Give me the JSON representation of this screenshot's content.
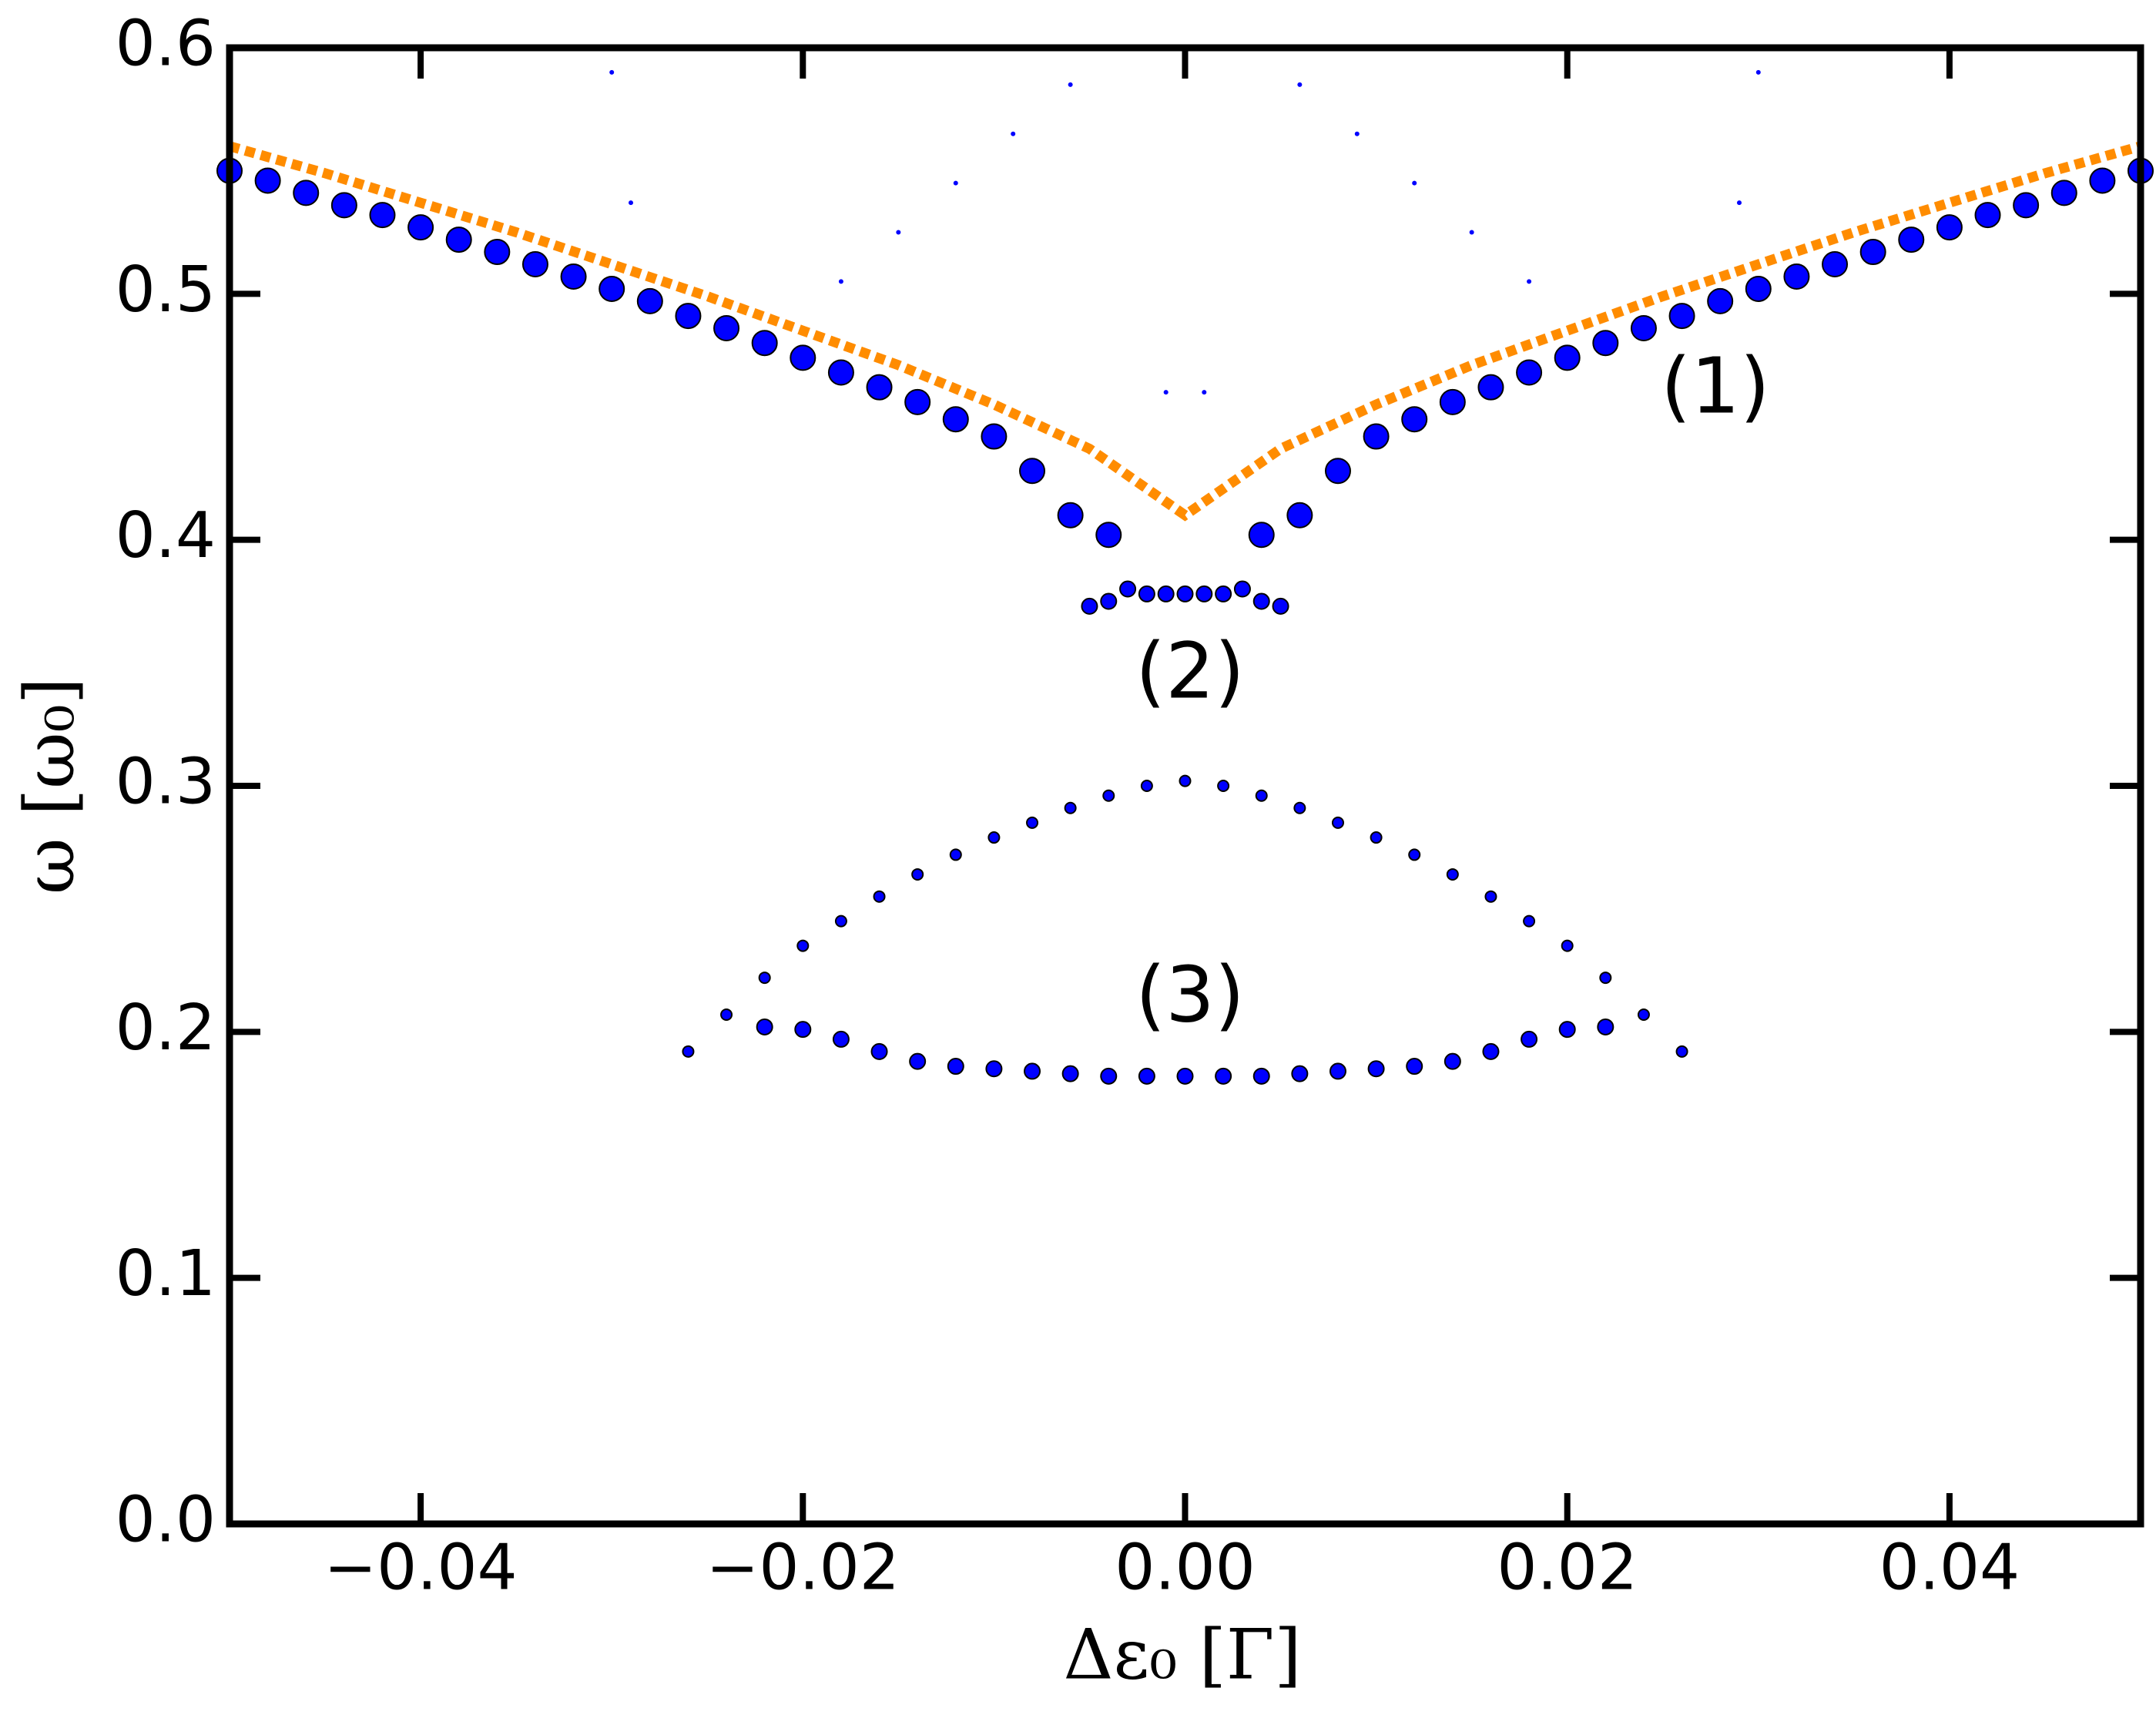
{
  "chart_data": {
    "type": "scatter",
    "x_label": "Δε₀  [Γ]",
    "y_label": "ω [ω₀]",
    "xlim": [
      -0.05,
      0.05
    ],
    "xticks": [
      {
        "value": -0.04,
        "label": "−0.04"
      },
      {
        "value": -0.02,
        "label": "−0.02"
      },
      {
        "value": 0,
        "label": "0.00"
      },
      0.02,
      0.04
    ],
    "ylim": [
      0,
      0.6
    ],
    "yticks": [
      {
        "value": 0,
        "label": "0.0"
      },
      0.1,
      0.2,
      0.3,
      0.4,
      0.5,
      0.6
    ],
    "annotations": [
      "(1)",
      "(2)",
      "(3)"
    ],
    "series": [
      {
        "style": "dotted-line",
        "color": "#ff8c00",
        "x": [
          -0.05,
          -0.045,
          -0.04,
          -0.035,
          -0.03,
          -0.025,
          -0.02,
          -0.015,
          -0.01,
          -0.005,
          0,
          0.005,
          0.01,
          0.015,
          0.02,
          0.025,
          0.03,
          0.035,
          0.04,
          0.045,
          0.05
        ],
        "y": [
          0.56,
          0.549,
          0.537,
          0.525,
          0.512,
          0.499,
          0.485,
          0.471,
          0.455,
          0.437,
          0.41,
          0.437,
          0.455,
          0.471,
          0.485,
          0.499,
          0.512,
          0.525,
          0.537,
          0.549,
          0.56
        ]
      },
      {
        "style": "marker",
        "size": 16,
        "color": "#0000ff",
        "x": [
          -0.05,
          -0.048,
          -0.046,
          -0.044,
          -0.042,
          -0.04,
          -0.038,
          -0.036,
          -0.034,
          -0.032,
          -0.03,
          -0.028,
          -0.026,
          -0.024,
          -0.022,
          -0.02,
          -0.018,
          -0.016,
          -0.014,
          -0.012,
          -0.01,
          -0.008,
          -0.006,
          -0.004,
          0.004,
          0.006,
          0.008,
          0.01,
          0.012,
          0.014,
          0.016,
          0.018,
          0.02,
          0.022,
          0.024,
          0.026,
          0.028,
          0.03,
          0.032,
          0.034,
          0.036,
          0.038,
          0.04,
          0.042,
          0.044,
          0.046,
          0.048,
          0.05
        ],
        "y": [
          0.55,
          0.546,
          0.541,
          0.536,
          0.532,
          0.527,
          0.522,
          0.517,
          0.512,
          0.507,
          0.502,
          0.497,
          0.491,
          0.486,
          0.48,
          0.474,
          0.468,
          0.462,
          0.456,
          0.449,
          0.442,
          0.428,
          0.41,
          0.402,
          0.402,
          0.41,
          0.428,
          0.442,
          0.449,
          0.456,
          0.462,
          0.468,
          0.474,
          0.48,
          0.486,
          0.491,
          0.497,
          0.502,
          0.507,
          0.512,
          0.517,
          0.522,
          0.527,
          0.532,
          0.536,
          0.541,
          0.546,
          0.55
        ]
      },
      {
        "style": "marker",
        "size": 10,
        "color": "#0000ff",
        "x": [
          -0.005,
          -0.004,
          -0.003,
          -0.002,
          -0.001,
          0,
          0.001,
          0.002,
          0.003,
          0.004,
          0.005
        ],
        "y": [
          0.373,
          0.375,
          0.38,
          0.378,
          0.378,
          0.378,
          0.378,
          0.378,
          0.38,
          0.375,
          0.373
        ]
      },
      {
        "style": "marker",
        "size": 7,
        "color": "#0000ff",
        "x": [
          -0.026,
          -0.024,
          -0.022,
          -0.02,
          -0.018,
          -0.016,
          -0.014,
          -0.012,
          -0.01,
          -0.008,
          -0.006,
          -0.004,
          -0.002,
          0,
          0.002,
          0.004,
          0.006,
          0.008,
          0.01,
          0.012,
          0.014,
          0.016,
          0.018,
          0.02,
          0.022,
          0.024,
          0.026
        ],
        "y": [
          0.192,
          0.207,
          0.222,
          0.235,
          0.245,
          0.255,
          0.264,
          0.272,
          0.279,
          0.285,
          0.291,
          0.296,
          0.3,
          0.302,
          0.3,
          0.296,
          0.291,
          0.285,
          0.279,
          0.272,
          0.264,
          0.255,
          0.245,
          0.235,
          0.222,
          0.207,
          0.192
        ]
      },
      {
        "style": "marker",
        "size": 10,
        "color": "#0000ff",
        "x": [
          -0.022,
          -0.02,
          -0.018,
          -0.016,
          -0.014,
          -0.012,
          -0.01,
          -0.008,
          -0.006,
          -0.004,
          -0.002,
          0,
          0.002,
          0.004,
          0.006,
          0.008,
          0.01,
          0.012,
          0.014,
          0.016,
          0.018,
          0.02,
          0.022
        ],
        "y": [
          0.202,
          0.201,
          0.197,
          0.192,
          0.188,
          0.186,
          0.185,
          0.184,
          0.183,
          0.182,
          0.182,
          0.182,
          0.182,
          0.182,
          0.183,
          0.184,
          0.185,
          0.186,
          0.188,
          0.192,
          0.197,
          0.201,
          0.202
        ]
      },
      {
        "style": "marker",
        "size": 3,
        "color": "#0000ff",
        "x": [
          -0.018,
          -0.015,
          -0.012,
          -0.009,
          -0.006,
          0.006,
          0.009,
          0.012,
          0.015,
          0.018,
          -0.001,
          0.001,
          -0.03,
          0.03,
          -0.029,
          0.029
        ],
        "y": [
          0.505,
          0.525,
          0.545,
          0.565,
          0.585,
          0.585,
          0.565,
          0.545,
          0.525,
          0.505,
          0.46,
          0.46,
          0.59,
          0.59,
          0.537,
          0.537
        ]
      }
    ]
  }
}
